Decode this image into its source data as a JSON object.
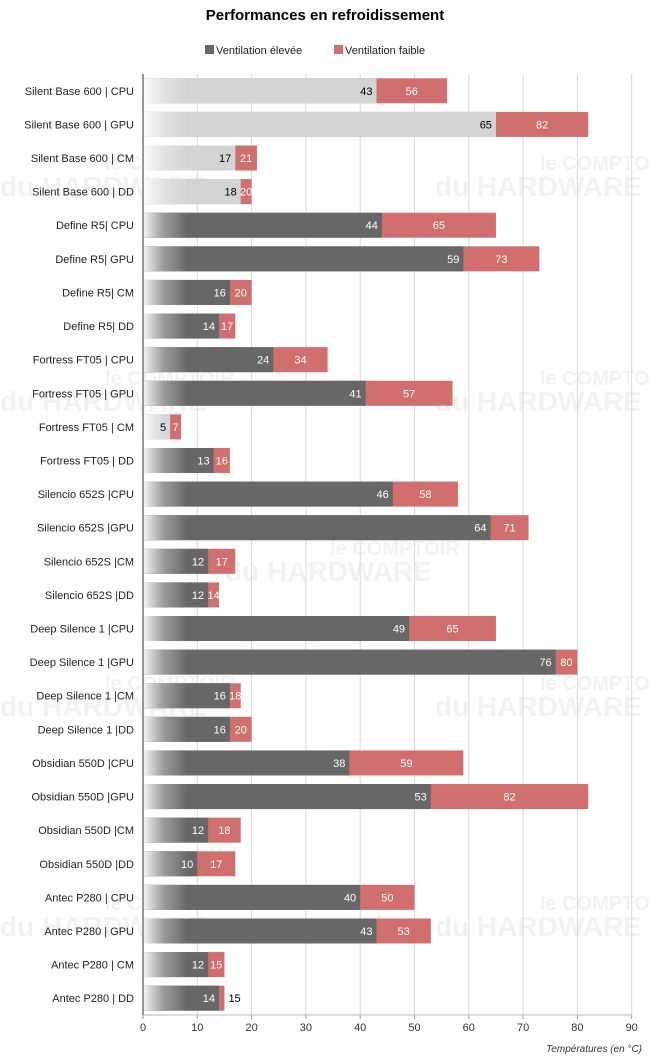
{
  "chart_data": {
    "type": "bar",
    "orientation": "horizontal",
    "stacked_overlay": true,
    "title": "Performances en refroidissement",
    "xlabel": "Températures (en °C)",
    "ylabel": "",
    "xlim": [
      0,
      90
    ],
    "xticks": [
      0,
      10,
      20,
      30,
      40,
      50,
      60,
      70,
      80,
      90
    ],
    "grid": true,
    "legend_position": "top-center",
    "categories": [
      "Silent Base 600 | CPU",
      "Silent Base 600 | GPU",
      "Silent Base 600 | CM",
      "Silent Base 600 | DD",
      "Define R5| CPU",
      "Define R5| GPU",
      "Define R5| CM",
      "Define R5| DD",
      "Fortress FT05 | CPU",
      "Fortress FT05 | GPU",
      "Fortress FT05 | CM",
      "Fortress FT05 | DD",
      "Silencio 652S |CPU",
      "Silencio 652S |GPU",
      "Silencio 652S |CM",
      "Silencio 652S |DD",
      "Deep Silence 1 |CPU",
      "Deep Silence 1 |GPU",
      "Deep Silence 1 |CM",
      "Deep Silence 1 |DD",
      "Obsidian 550D |CPU",
      "Obsidian 550D |GPU",
      "Obsidian 550D |CM",
      "Obsidian 550D |DD",
      "Antec P280 | CPU",
      "Antec P280 | GPU",
      "Antec P280 | CM",
      "Antec P280 | DD"
    ],
    "highlighted_categories": [
      0,
      1,
      2,
      3,
      10
    ],
    "series": [
      {
        "name": "Ventilation élevée",
        "color": "#676767",
        "highlight_color": "#d4d4d4",
        "values": [
          43,
          65,
          17,
          18,
          44,
          59,
          16,
          14,
          24,
          41,
          5,
          13,
          46,
          64,
          12,
          12,
          49,
          76,
          16,
          16,
          38,
          53,
          12,
          10,
          40,
          43,
          12,
          14
        ]
      },
      {
        "name": "Ventilation faible",
        "color": "#d16e6e",
        "values": [
          56,
          82,
          21,
          20,
          65,
          73,
          20,
          17,
          34,
          57,
          7,
          16,
          58,
          71,
          17,
          14,
          65,
          80,
          18,
          20,
          59,
          82,
          18,
          17,
          50,
          53,
          15,
          15
        ]
      }
    ]
  },
  "watermark": {
    "line1": "le COMPTOIR",
    "line2": "du HARDWARE"
  }
}
